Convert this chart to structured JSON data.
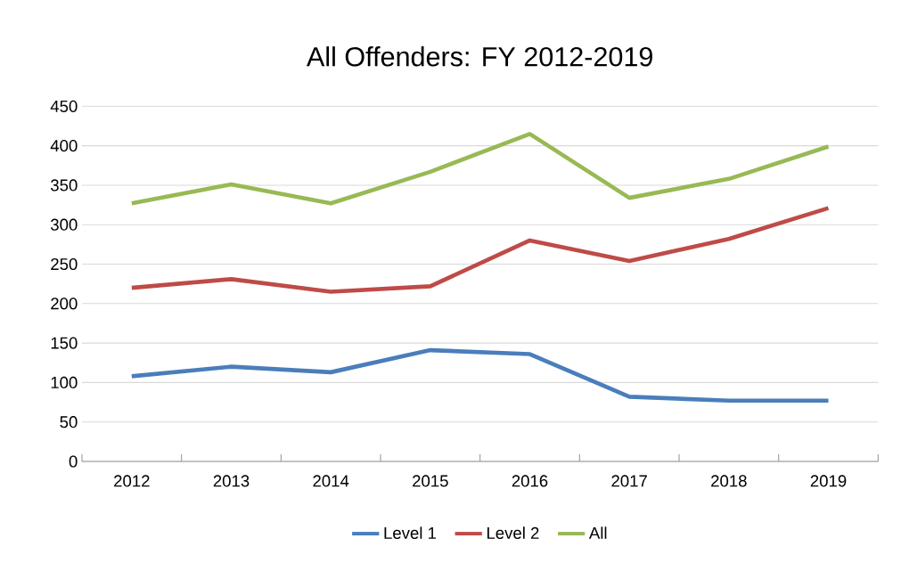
{
  "chart_data": {
    "type": "line",
    "title": "All Offenders: FY 2012-2019",
    "categories": [
      "2012",
      "2013",
      "2014",
      "2015",
      "2016",
      "2017",
      "2018",
      "2019"
    ],
    "series": [
      {
        "name": "Level 1",
        "color": "#4a7ebb",
        "values": [
          108,
          120,
          113,
          141,
          136,
          82,
          77,
          77
        ]
      },
      {
        "name": "Level 2",
        "color": "#be4b48",
        "values": [
          220,
          231,
          215,
          222,
          280,
          254,
          282,
          321
        ]
      },
      {
        "name": "All",
        "color": "#98b954",
        "values": [
          327,
          351,
          327,
          367,
          415,
          334,
          358,
          399
        ]
      }
    ],
    "ylim": [
      0,
      450
    ],
    "yticks": [
      0,
      50,
      100,
      150,
      200,
      250,
      300,
      350,
      400,
      450
    ],
    "grid": "y",
    "legend": "bottom",
    "marker": "none",
    "line_style": "solid"
  }
}
